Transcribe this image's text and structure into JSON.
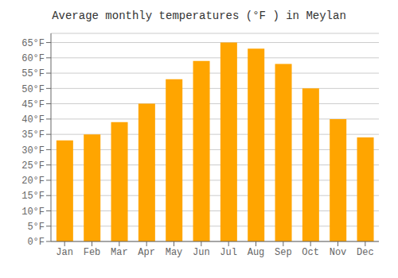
{
  "chart_data": {
    "type": "bar",
    "title": "Average monthly temperatures (°F ) in Meylan",
    "categories": [
      "Jan",
      "Feb",
      "Mar",
      "Apr",
      "May",
      "Jun",
      "Jul",
      "Aug",
      "Sep",
      "Oct",
      "Nov",
      "Dec"
    ],
    "values": [
      33,
      35,
      39,
      45,
      53,
      59,
      65,
      63,
      58,
      50,
      40,
      34
    ],
    "color": "#FFA500",
    "ylim": [
      0,
      68
    ],
    "yticks": [
      {
        "value": 0,
        "label": "0°F"
      },
      {
        "value": 5,
        "label": "5°F"
      },
      {
        "value": 10,
        "label": "10°F"
      },
      {
        "value": 15,
        "label": "15°F"
      },
      {
        "value": 20,
        "label": "20°F"
      },
      {
        "value": 25,
        "label": "25°F"
      },
      {
        "value": 30,
        "label": "30°F"
      },
      {
        "value": 35,
        "label": "35°F"
      },
      {
        "value": 40,
        "label": "40°F"
      },
      {
        "value": 45,
        "label": "45°F"
      },
      {
        "value": 50,
        "label": "50°F"
      },
      {
        "value": 55,
        "label": "55°F"
      },
      {
        "value": 60,
        "label": "60°F"
      },
      {
        "value": 65,
        "label": "65°F"
      }
    ],
    "grid": true
  }
}
